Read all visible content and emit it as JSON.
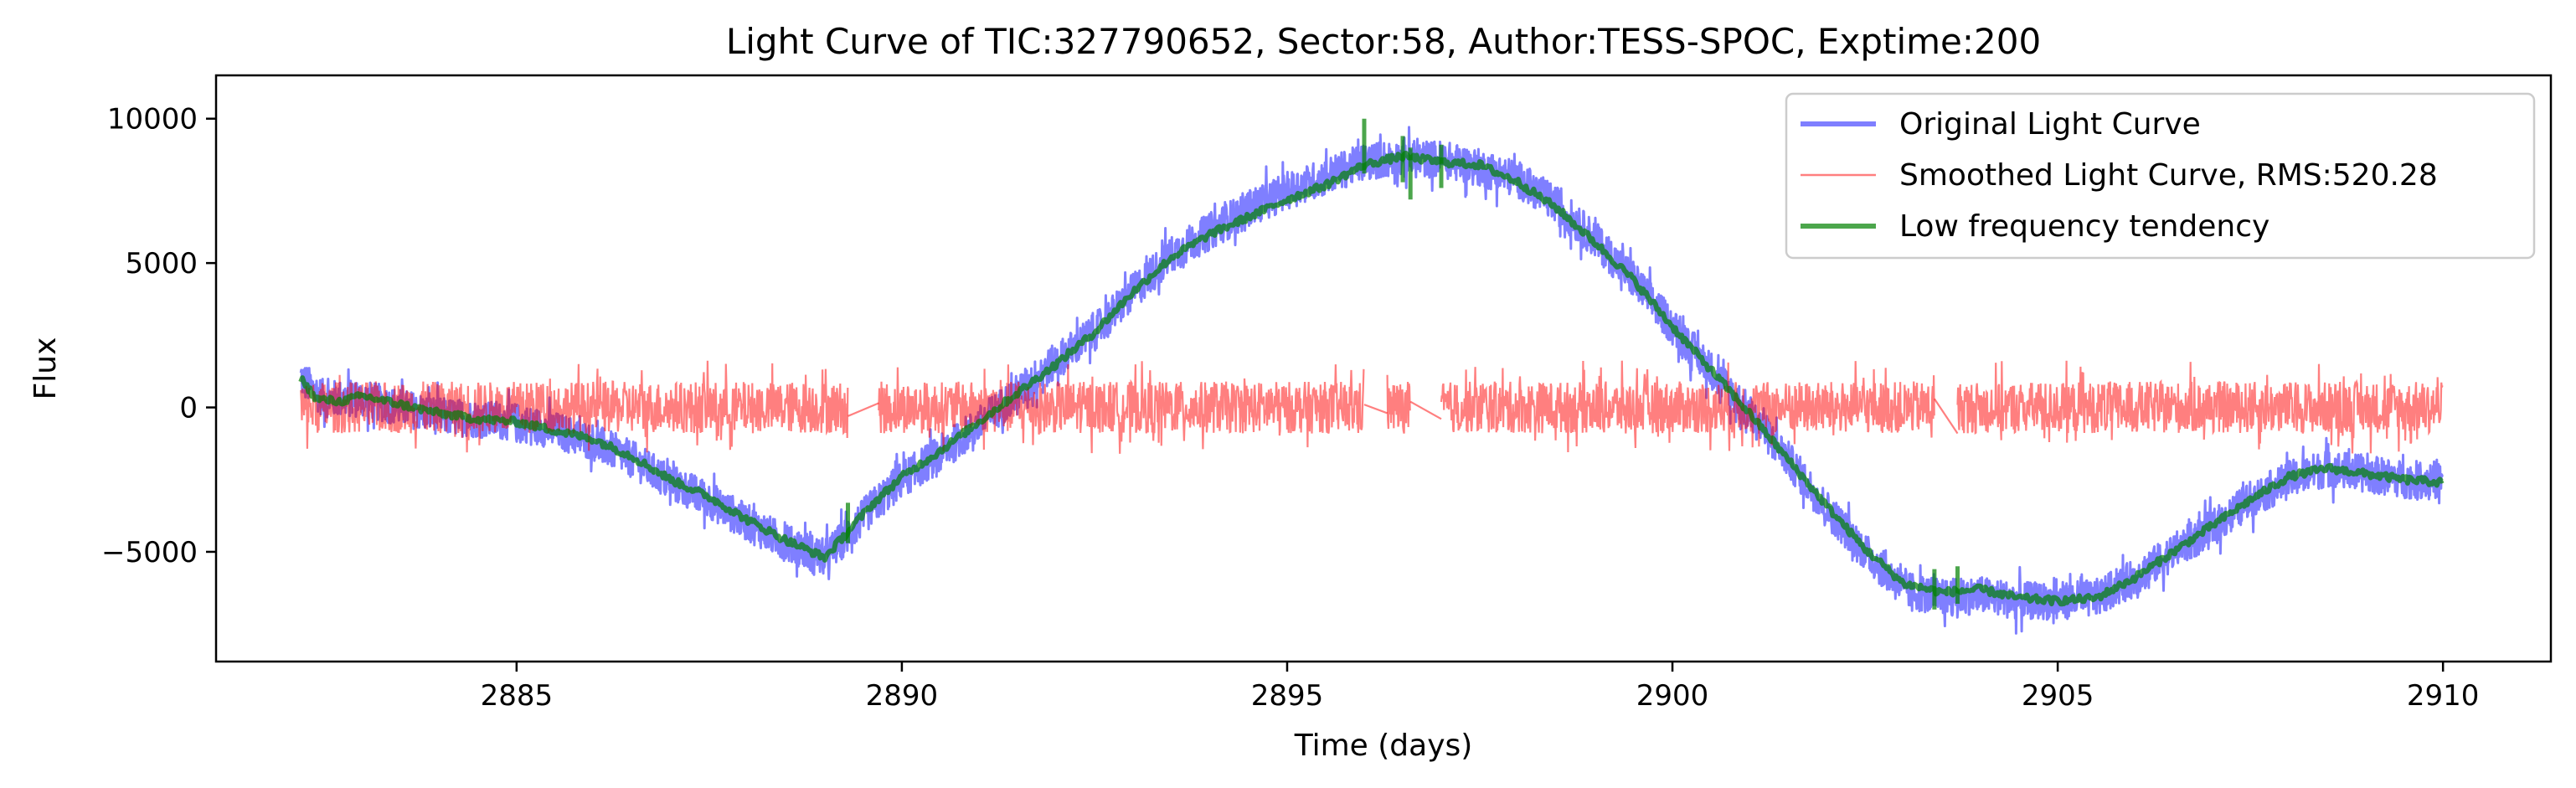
{
  "chart_data": {
    "type": "line",
    "title": "Light Curve of TIC:327790652, Sector:58, Author:TESS-SPOC, Exptime:200",
    "xlabel": "Time (days)",
    "ylabel": "Flux",
    "xlim": [
      2881.1,
      2911.4
    ],
    "ylim": [
      -8800,
      11500
    ],
    "grid": false,
    "legend_position": "top-right",
    "x_ticks": [
      2885,
      2890,
      2895,
      2900,
      2905,
      2910
    ],
    "x_tick_labels": [
      "2885",
      "2890",
      "2895",
      "2900",
      "2905",
      "2910"
    ],
    "y_ticks": [
      -5000,
      0,
      5000,
      10000
    ],
    "y_tick_labels": [
      "−5000",
      "0",
      "5000",
      "10000"
    ],
    "series": [
      {
        "name": "Original Light Curve",
        "color": "#0000ff",
        "opacity": 0.5,
        "noise_amplitude": 650,
        "x": [
          2882.2,
          2882.5,
          2883.0,
          2883.5,
          2884.0,
          2884.5,
          2885.0,
          2885.5,
          2886.0,
          2886.5,
          2887.0,
          2887.5,
          2888.0,
          2888.5,
          2889.0,
          2889.3,
          2889.6,
          2890.0,
          2890.5,
          2891.0,
          2891.5,
          2892.0,
          2892.5,
          2893.0,
          2893.5,
          2894.0,
          2894.5,
          2895.0,
          2895.5,
          2896.0,
          2896.3,
          2897.0,
          2897.5,
          2898.0,
          2898.5,
          2899.0,
          2899.5,
          2900.0,
          2900.5,
          2901.0,
          2901.5,
          2902.0,
          2902.5,
          2903.0,
          2903.5,
          2904.0,
          2904.5,
          2905.0,
          2905.5,
          2906.0,
          2906.5,
          2907.0,
          2907.5,
          2908.0,
          2908.5,
          2909.0,
          2909.5,
          2910.0
        ],
        "y": [
          1000,
          300,
          300,
          0,
          -300,
          -400,
          -500,
          -800,
          -1200,
          -1800,
          -2600,
          -3200,
          -4000,
          -4700,
          -5200,
          -4400,
          -3500,
          -2500,
          -1600,
          -600,
          500,
          1600,
          2600,
          4000,
          5300,
          6100,
          6900,
          7500,
          8000,
          8500,
          8600,
          8600,
          8300,
          7900,
          7000,
          5800,
          4400,
          2800,
          1300,
          -200,
          -1800,
          -3500,
          -5000,
          -6300,
          -6600,
          -6500,
          -6700,
          -6700,
          -6600,
          -5900,
          -5000,
          -4200,
          -3200,
          -2500,
          -2100,
          -2300,
          -2500,
          -2500
        ]
      },
      {
        "name": "Smoothed Light Curve, RMS:520.28",
        "color": "#ff0000",
        "opacity": 0.5,
        "noise_amplitude": 900,
        "segments": [
          [
            2882.2,
            2889.3
          ],
          [
            2889.7,
            2896.0
          ],
          [
            2896.3,
            2896.6
          ],
          [
            2897.0,
            2903.4
          ],
          [
            2903.7,
            2910.0
          ]
        ],
        "bridges": [
          [
            2889.3,
            -300,
            2889.7,
            150
          ],
          [
            2896.0,
            100,
            2896.3,
            -200
          ],
          [
            2896.6,
            200,
            2897.0,
            -400
          ],
          [
            2903.4,
            300,
            2903.7,
            -900
          ]
        ],
        "y_center": 0
      },
      {
        "name": "Low frequency tendency",
        "color": "#008000",
        "opacity": 0.7,
        "x": [
          2882.2,
          2882.4,
          2882.7,
          2883.0,
          2883.5,
          2884.0,
          2884.5,
          2885.0,
          2885.5,
          2886.0,
          2886.5,
          2887.0,
          2887.5,
          2888.0,
          2888.5,
          2889.0,
          2889.3,
          2889.6,
          2890.0,
          2890.5,
          2891.0,
          2891.5,
          2892.0,
          2892.5,
          2893.0,
          2893.5,
          2894.0,
          2894.5,
          2895.0,
          2895.5,
          2896.0,
          2896.5,
          2897.0,
          2897.5,
          2898.0,
          2898.5,
          2899.0,
          2899.5,
          2900.0,
          2900.5,
          2901.0,
          2901.5,
          2902.0,
          2902.5,
          2903.0,
          2903.5,
          2904.0,
          2904.5,
          2905.0,
          2905.5,
          2906.0,
          2906.5,
          2907.0,
          2907.5,
          2908.0,
          2908.5,
          2909.0,
          2909.5,
          2910.0
        ],
        "y": [
          1000,
          300,
          200,
          400,
          100,
          -200,
          -400,
          -500,
          -800,
          -1100,
          -1700,
          -2500,
          -3100,
          -3900,
          -4600,
          -5200,
          -4300,
          -3400,
          -2400,
          -1500,
          -500,
          500,
          1500,
          2600,
          4000,
          5200,
          6000,
          6600,
          7200,
          7700,
          8400,
          8700,
          8500,
          8400,
          7800,
          6900,
          5700,
          4400,
          2800,
          1300,
          -200,
          -1800,
          -3400,
          -4900,
          -6100,
          -6400,
          -6300,
          -6600,
          -6700,
          -6600,
          -5900,
          -5000,
          -4100,
          -3200,
          -2400,
          -2100,
          -2300,
          -2500,
          -2600
        ]
      }
    ]
  }
}
